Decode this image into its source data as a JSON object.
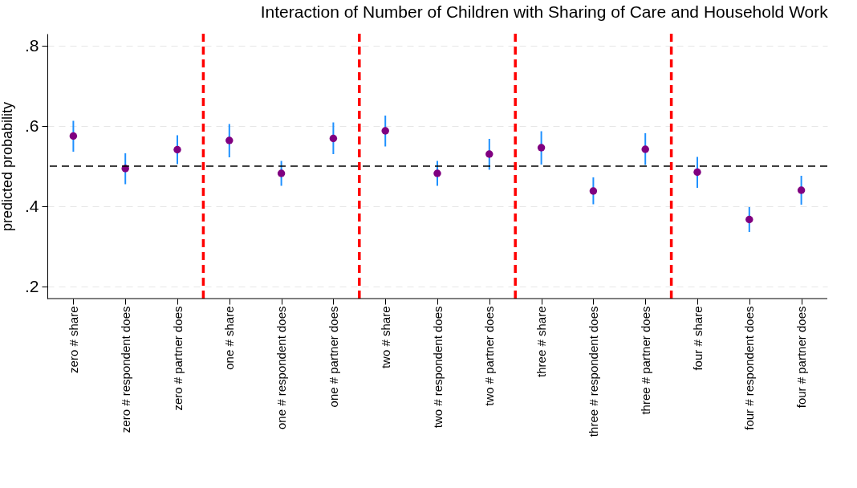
{
  "chart_data": {
    "type": "scatter",
    "title": "Interaction of Number of Children with Sharing of Care and Household Work",
    "ylabel": "predicted probability",
    "categories": [
      "zero # share",
      "zero # respondent does",
      "zero # partner does",
      "one # share",
      "one # respondent does",
      "one # partner does",
      "two # share",
      "two # respondent does",
      "two # partner does",
      "three # share",
      "three # respondent does",
      "three # partner does",
      "four # share",
      "four # respondent does",
      "four # partner does"
    ],
    "series": [
      {
        "color": "#800080",
        "values": [
          0.575,
          0.494,
          0.541,
          0.564,
          0.482,
          0.569,
          0.588,
          0.482,
          0.53,
          0.546,
          0.438,
          0.542,
          0.485,
          0.367,
          0.44
        ],
        "errors": [
          [
            0.536,
            0.613
          ],
          [
            0.455,
            0.532
          ],
          [
            0.505,
            0.577
          ],
          [
            0.522,
            0.605
          ],
          [
            0.451,
            0.513
          ],
          [
            0.53,
            0.609
          ],
          [
            0.549,
            0.626
          ],
          [
            0.451,
            0.513
          ],
          [
            0.491,
            0.568
          ],
          [
            0.504,
            0.587
          ],
          [
            0.405,
            0.472
          ],
          [
            0.503,
            0.582
          ],
          [
            0.446,
            0.523
          ],
          [
            0.336,
            0.398
          ],
          [
            0.404,
            0.476
          ]
        ]
      }
    ],
    "ylim": [
      0.17,
      0.83
    ],
    "yticks": [
      {
        "value": 0.2,
        "label": ".2"
      },
      {
        "value": 0.4,
        "label": ".4"
      },
      {
        "value": 0.6,
        "label": ".6"
      },
      {
        "value": 0.8,
        "label": ".8"
      }
    ],
    "grid": "y",
    "marker": "circle",
    "ref_lines": [
      {
        "axis": "y",
        "value": 0.5,
        "color": "#000000",
        "line_style": "dashed"
      }
    ]
  }
}
